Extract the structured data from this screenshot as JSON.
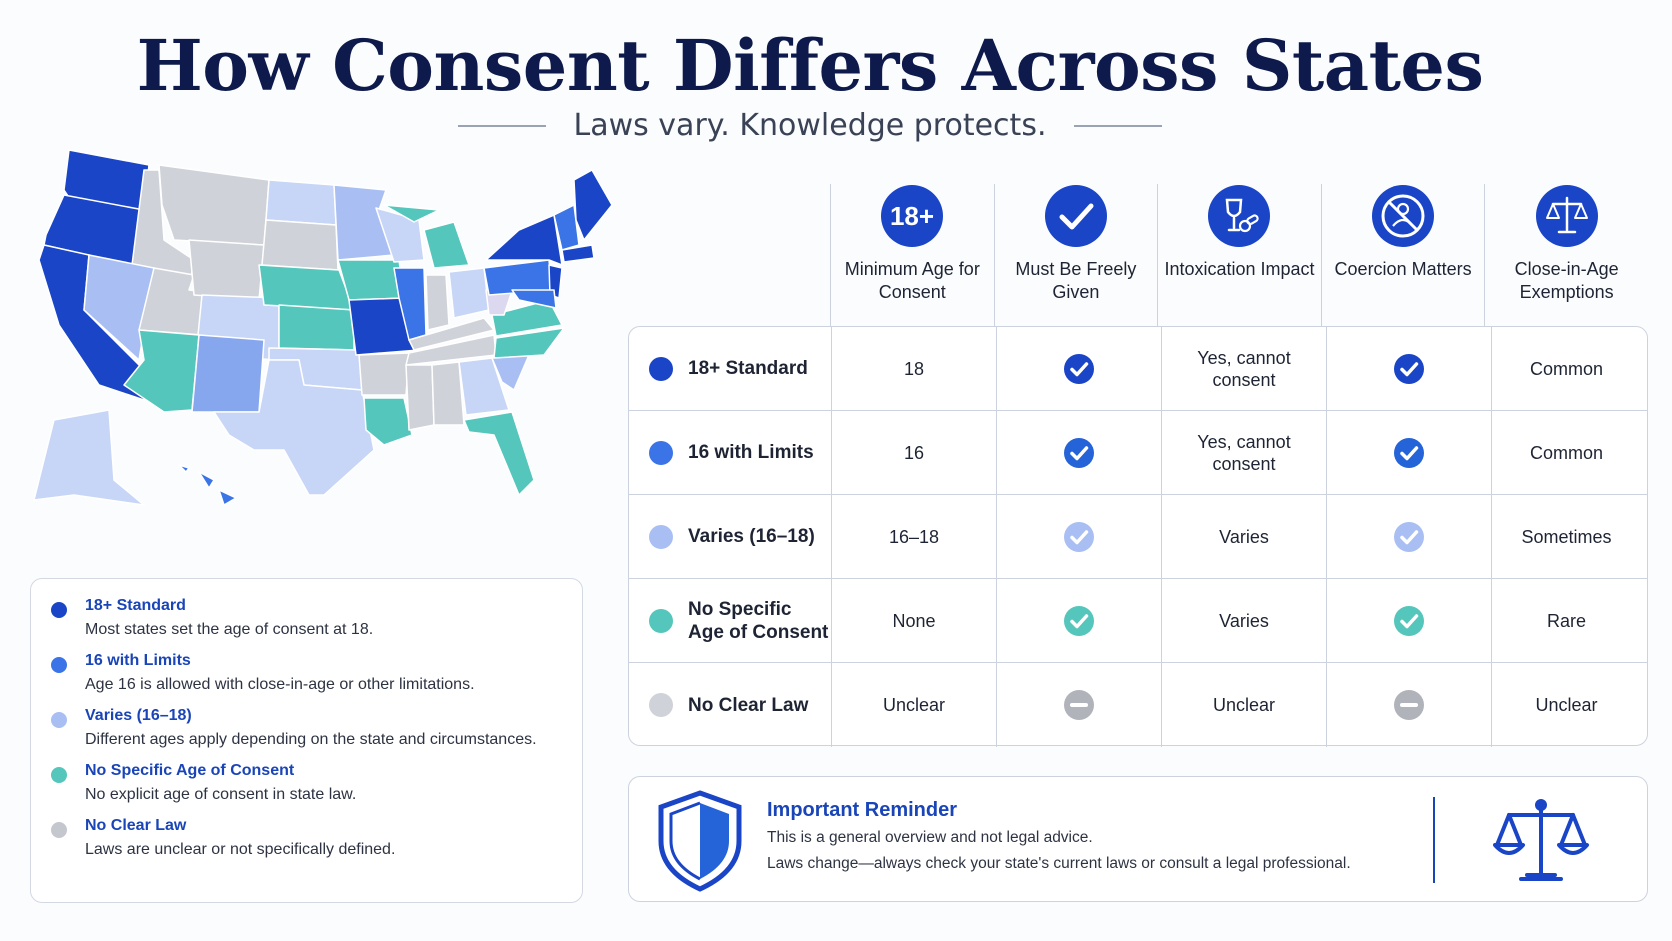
{
  "title": "How Consent Differs Across States",
  "subtitle": "Laws vary. Knowledge protects.",
  "colors": {
    "standard": "#1a45c6",
    "limits": "#3a74e6",
    "varies": "#a9bff3",
    "none": "#54c6bb",
    "unclear": "#cfd2d8",
    "navy": "#0d1a4b"
  },
  "legend": [
    {
      "title": "18+ Standard",
      "desc": "Most states set the age of consent at 18.",
      "color": "#1a45c6"
    },
    {
      "title": "16 with Limits",
      "desc": "Age 16 is allowed with close-in-age or other limitations.",
      "color": "#3a74e6"
    },
    {
      "title": "Varies (16–18)",
      "desc": "Different ages apply depending on the state and circumstances.",
      "color": "#a9bff3"
    },
    {
      "title": "No Specific Age of Consent",
      "desc": "No explicit age of consent in state law.",
      "color": "#54c6bb"
    },
    {
      "title": "No Clear Law",
      "desc": "Laws are unclear or not specifically defined.",
      "color": "#c4c7ce"
    }
  ],
  "columns": [
    {
      "label": "Minimum Age for Consent",
      "icon": "18-plus-icon",
      "icon_text": "18+"
    },
    {
      "label": "Must Be Freely Given",
      "icon": "checkmark-icon"
    },
    {
      "label": "Intoxication Impact",
      "icon": "wine-glass-pills-icon"
    },
    {
      "label": "Coercion Matters",
      "icon": "no-coercion-icon"
    },
    {
      "label": "Close-in-Age Exemptions",
      "icon": "scales-icon"
    }
  ],
  "rows": [
    {
      "label": "18+ Standard",
      "dot": "#1a45c6",
      "check_color": "#1a45c6",
      "age": "18",
      "freely": "check",
      "intox": "Yes, cannot consent",
      "coercion": "check",
      "exempt": "Common"
    },
    {
      "label": "16 with Limits",
      "dot": "#3a74e6",
      "check_color": "#2563d9",
      "age": "16",
      "freely": "check",
      "intox": "Yes, cannot consent",
      "coercion": "check",
      "exempt": "Common"
    },
    {
      "label": "Varies (16–18)",
      "dot": "#a9bff3",
      "check_color": "#a9bff3",
      "age": "16–18",
      "freely": "check",
      "intox": "Varies",
      "coercion": "check",
      "exempt": "Sometimes"
    },
    {
      "label": "No Specific Age of Consent",
      "dot": "#54c6bb",
      "check_color": "#54c6bb",
      "age": "None",
      "freely": "check",
      "intox": "Varies",
      "coercion": "check",
      "exempt": "Rare"
    },
    {
      "label": "No Clear Law",
      "dot": "#cfd2d8",
      "check_color": "#b0b3ba",
      "age": "Unclear",
      "freely": "dash",
      "intox": "Unclear",
      "coercion": "dash",
      "exempt": "Unclear"
    }
  ],
  "reminder": {
    "title": "Important Reminder",
    "line1": "This is a general overview and not legal advice.",
    "line2": "Laws change—always check your state's current laws or consult a legal professional."
  }
}
